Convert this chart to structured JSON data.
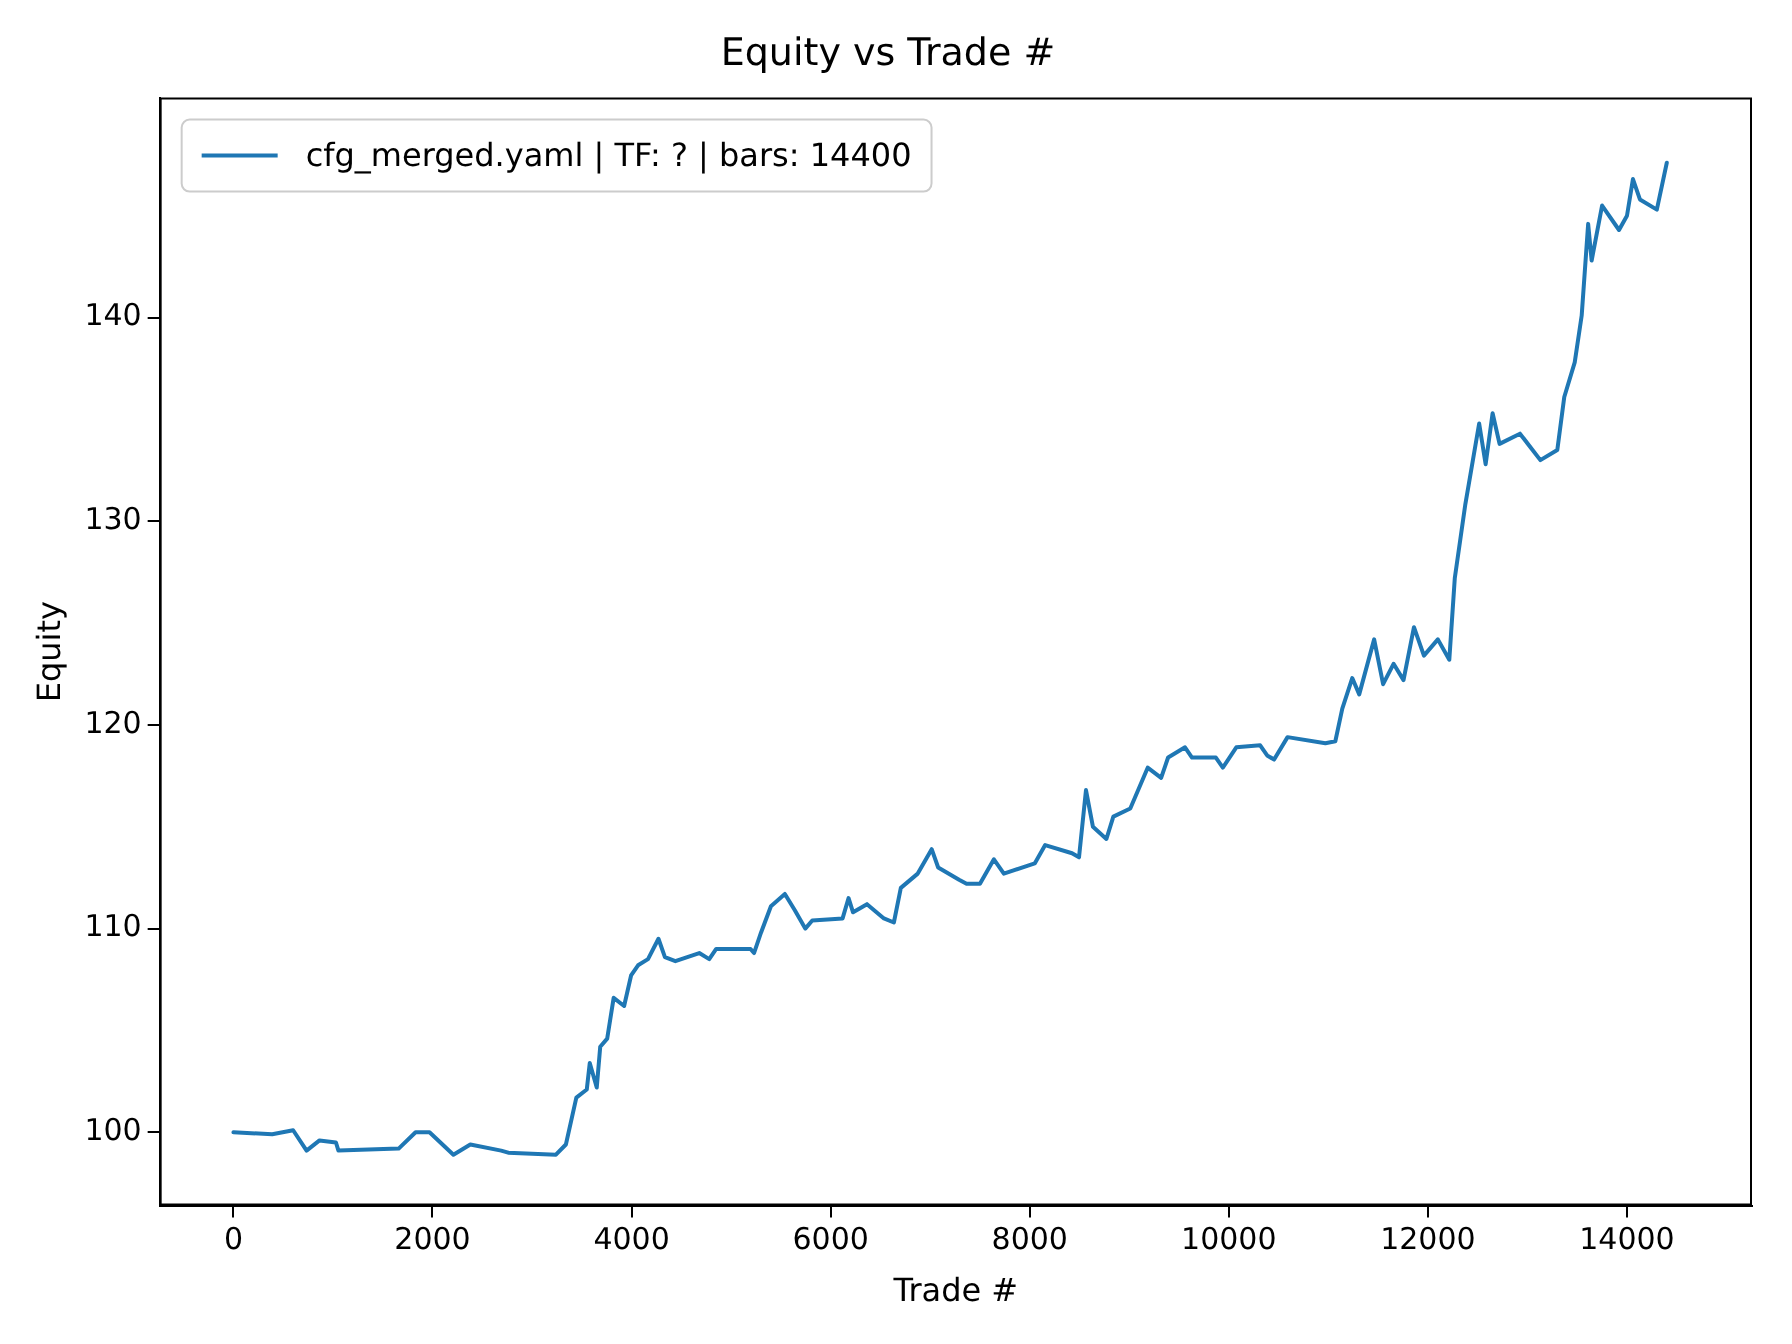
{
  "chart_data": {
    "type": "line",
    "title": "Equity vs Trade #",
    "xlabel": "Trade #",
    "ylabel": "Equity",
    "xlim": [
      -741,
      15256
    ],
    "xticks": [
      0,
      2000,
      4000,
      6000,
      8000,
      10000,
      12000,
      14000
    ],
    "ylim": [
      96.4,
      150.8
    ],
    "yticks": [
      100,
      110,
      120,
      130,
      140
    ],
    "grid": false,
    "legend": "top left",
    "marker": "none",
    "line_style": "solid",
    "series": [
      {
        "name": "cfg_merged.yaml | TF: ? | bars: 14400",
        "color": "#1f77b4",
        "x": [
          0,
          390,
          600,
          735,
          865,
          1030,
          1055,
          1660,
          1830,
          1970,
          2210,
          2380,
          2690,
          2760,
          3240,
          3340,
          3445,
          3550,
          3580,
          3650,
          3685,
          3755,
          3820,
          3925,
          3995,
          4065,
          4165,
          4270,
          4335,
          4440,
          4680,
          4780,
          4850,
          5195,
          5230,
          5300,
          5400,
          5540,
          5640,
          5745,
          5815,
          6120,
          6180,
          6225,
          6365,
          6535,
          6635,
          6705,
          6875,
          7015,
          7080,
          7290,
          7365,
          7500,
          7640,
          7740,
          8050,
          8155,
          8425,
          8495,
          8565,
          8635,
          8770,
          8840,
          9010,
          9185,
          9320,
          9390,
          9560,
          9630,
          9870,
          9940,
          10075,
          10315,
          10385,
          10455,
          10590,
          10970,
          11070,
          11140,
          11240,
          11310,
          11460,
          11550,
          11655,
          11755,
          11860,
          11960,
          12100,
          12215,
          12270,
          12375,
          12410,
          12515,
          12580,
          12650,
          12720,
          12925,
          13130,
          13300,
          13370,
          13475,
          13545,
          13610,
          13645,
          13750,
          13920,
          14000,
          14060,
          14130,
          14300,
          14400
        ],
        "values": [
          100.0,
          99.9,
          100.1,
          99.1,
          99.6,
          99.5,
          99.1,
          99.2,
          100.0,
          100.0,
          98.9,
          99.4,
          99.1,
          99.0,
          98.9,
          99.4,
          101.7,
          102.1,
          103.4,
          102.2,
          104.2,
          104.6,
          106.6,
          106.2,
          107.7,
          108.2,
          108.5,
          109.5,
          108.6,
          108.4,
          108.8,
          108.5,
          109.0,
          109.0,
          108.8,
          109.8,
          111.1,
          111.7,
          110.9,
          110.0,
          110.4,
          110.5,
          111.5,
          110.8,
          111.2,
          110.5,
          110.3,
          112.0,
          112.7,
          113.9,
          113.0,
          112.4,
          112.2,
          112.2,
          113.4,
          112.7,
          113.2,
          114.1,
          113.7,
          113.5,
          116.8,
          115.0,
          114.4,
          115.5,
          115.9,
          117.9,
          117.4,
          118.4,
          118.9,
          118.4,
          118.4,
          117.9,
          118.9,
          119.0,
          118.5,
          118.3,
          119.4,
          119.1,
          119.2,
          120.8,
          122.3,
          121.5,
          124.2,
          122.0,
          123.0,
          122.2,
          124.8,
          123.4,
          124.2,
          123.2,
          127.2,
          130.8,
          131.8,
          134.8,
          132.8,
          135.3,
          133.8,
          134.3,
          133.0,
          133.5,
          136.1,
          137.8,
          140.1,
          144.6,
          142.8,
          145.5,
          144.3,
          145.0,
          146.8,
          145.8,
          145.3,
          147.6
        ]
      }
    ]
  }
}
